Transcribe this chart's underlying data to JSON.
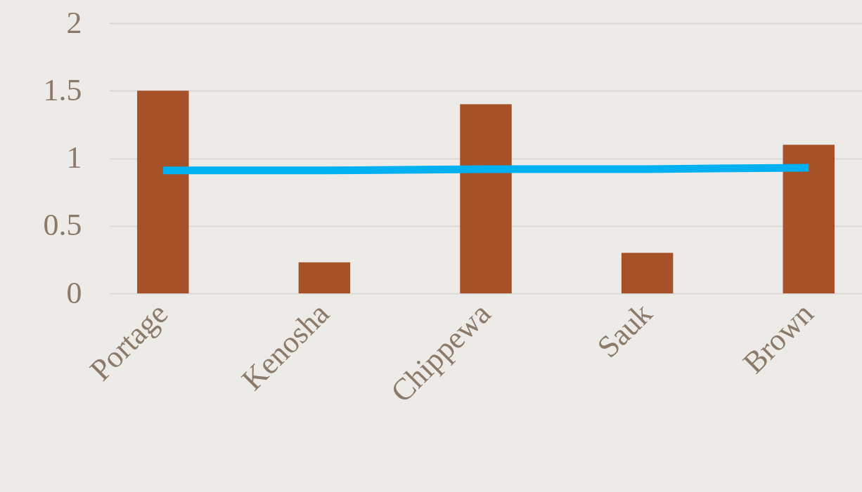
{
  "chart_data": {
    "type": "bar",
    "categories": [
      "Portage",
      "Kenosha",
      "Chippewa",
      "Sauk",
      "Brown"
    ],
    "series": [
      {
        "color": "#a65128",
        "values": [
          1.5,
          0.23,
          1.4,
          0.3,
          1.1
        ]
      },
      {
        "type": "line",
        "color": "#00b0f0",
        "values": [
          0.91,
          0.91,
          0.92,
          0.92,
          0.93
        ]
      }
    ],
    "ylim": [
      0,
      2
    ],
    "yticks": [
      0,
      0.5,
      1,
      1.5,
      2
    ],
    "grid": "y"
  }
}
